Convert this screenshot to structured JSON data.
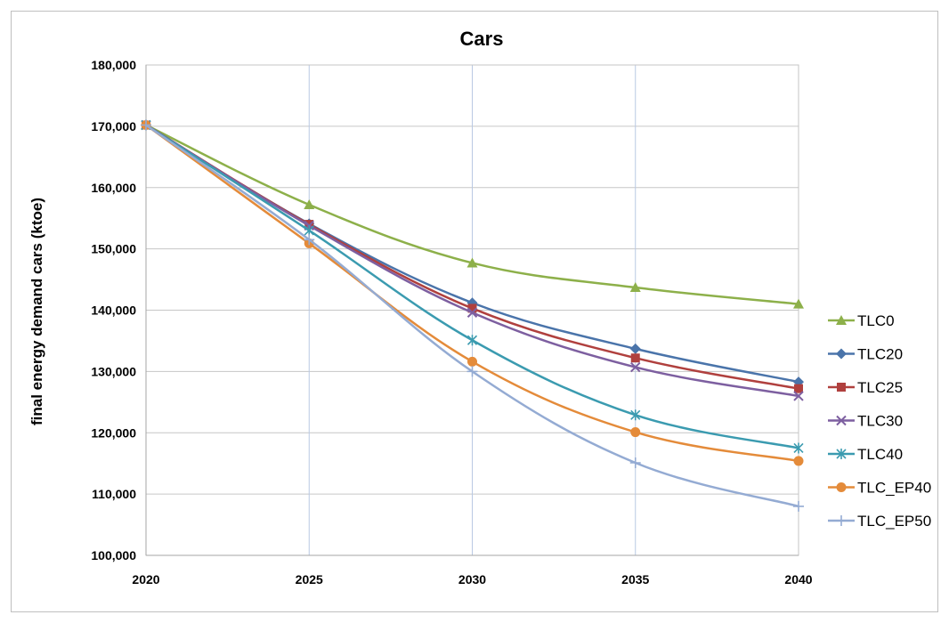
{
  "chart_data": {
    "type": "line",
    "title": "Cars",
    "xlabel": "",
    "ylabel": "final energy demand cars (ktoe)",
    "x": [
      2020,
      2025,
      2030,
      2035,
      2040
    ],
    "x_tick_labels": [
      "2020",
      "2025",
      "2030",
      "2035",
      "2040"
    ],
    "ylim": [
      100000,
      180000
    ],
    "y_tick_labels": [
      "100,000",
      "110,000",
      "120,000",
      "130,000",
      "140,000",
      "150,000",
      "160,000",
      "170,000",
      "180,000"
    ],
    "grid": true,
    "legend_position": "right",
    "series": [
      {
        "name": "TLC0",
        "color": "#8db04a",
        "marker": "triangle",
        "values": [
          170200,
          157200,
          147700,
          143700,
          141000
        ]
      },
      {
        "name": "TLC20",
        "color": "#4a74aa",
        "marker": "diamond",
        "values": [
          170200,
          154100,
          141200,
          133700,
          128300
        ]
      },
      {
        "name": "TLC25",
        "color": "#b0403e",
        "marker": "square",
        "values": [
          170200,
          154000,
          140300,
          132200,
          127200
        ]
      },
      {
        "name": "TLC30",
        "color": "#7d5fa0",
        "marker": "x",
        "values": [
          170200,
          153800,
          139600,
          130700,
          126000
        ]
      },
      {
        "name": "TLC40",
        "color": "#3b9bb0",
        "marker": "star",
        "values": [
          170200,
          153000,
          135100,
          122900,
          117500
        ]
      },
      {
        "name": "TLC_EP40",
        "color": "#e48b3a",
        "marker": "circle",
        "values": [
          170200,
          150900,
          131600,
          120100,
          115400
        ]
      },
      {
        "name": "TLC_EP50",
        "color": "#94abd3",
        "marker": "plus",
        "values": [
          170200,
          151500,
          130000,
          115100,
          108000
        ]
      }
    ]
  }
}
